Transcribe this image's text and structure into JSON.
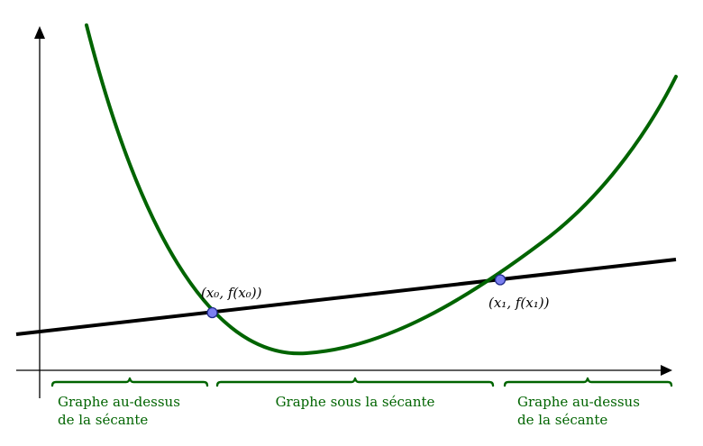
{
  "diagram": {
    "points": {
      "p0": {
        "label": "(x₀, f(x₀))"
      },
      "p1": {
        "label": "(x₁, f(x₁))"
      }
    },
    "regions": {
      "left": {
        "line1": "Graphe au-dessus",
        "line2": "de la sécante"
      },
      "middle": {
        "line1": "Graphe sous la sécante"
      },
      "right": {
        "line1": "Graphe au-dessus",
        "line2": "de la sécante"
      }
    }
  },
  "colors": {
    "curve": "#006400",
    "secant": "#000000",
    "axes": "#000000",
    "point_fill": "#7b7ff0",
    "point_stroke": "#1f2a8a",
    "brace": "#006400",
    "label": "#006400"
  }
}
